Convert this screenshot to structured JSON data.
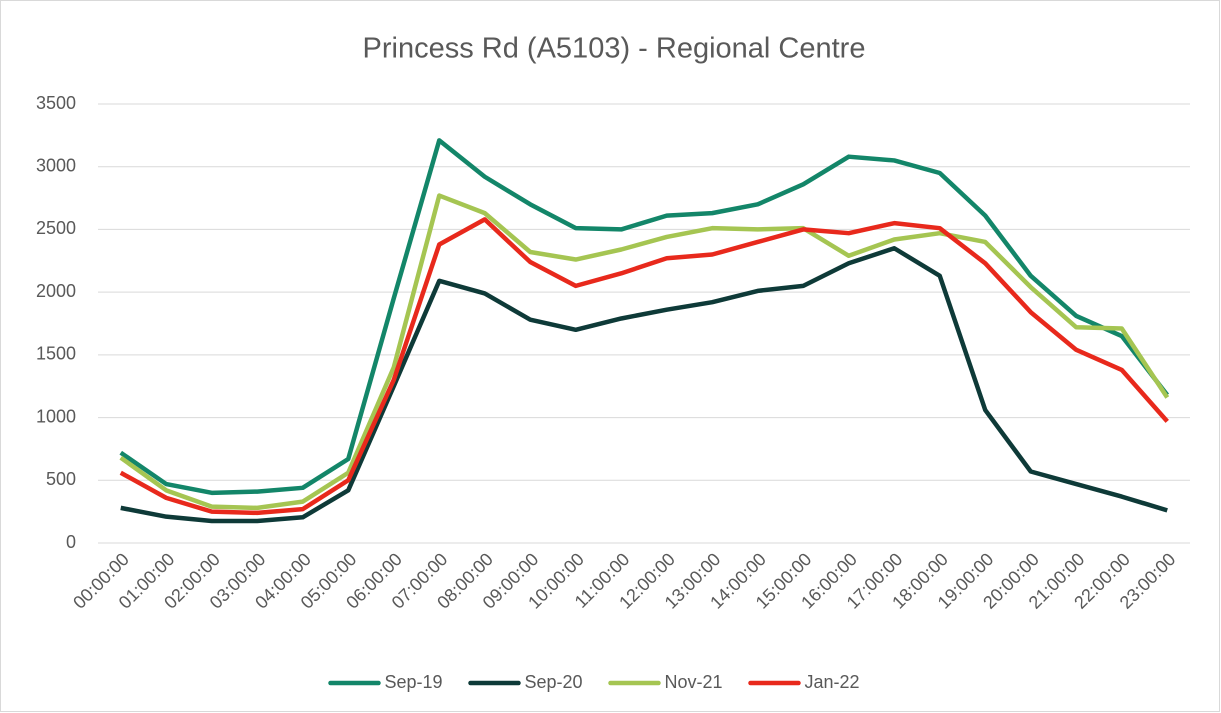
{
  "chart_data": {
    "type": "line",
    "title": "Princess Rd (A5103) - Regional Centre",
    "categories": [
      "00:00:00",
      "01:00:00",
      "02:00:00",
      "03:00:00",
      "04:00:00",
      "05:00:00",
      "06:00:00",
      "07:00:00",
      "08:00:00",
      "09:00:00",
      "10:00:00",
      "11:00:00",
      "12:00:00",
      "13:00:00",
      "14:00:00",
      "15:00:00",
      "16:00:00",
      "17:00:00",
      "18:00:00",
      "19:00:00",
      "20:00:00",
      "21:00:00",
      "22:00:00",
      "23:00:00"
    ],
    "series": [
      {
        "name": "Sep-19",
        "color": "#138669",
        "values": [
          720,
          470,
          400,
          410,
          440,
          670,
          1950,
          3210,
          2920,
          2700,
          2510,
          2500,
          2610,
          2630,
          2700,
          2860,
          3080,
          3050,
          2950,
          2610,
          2130,
          1810,
          1650,
          1180
        ]
      },
      {
        "name": "Sep-20",
        "color": "#0e3a38",
        "values": [
          280,
          210,
          175,
          175,
          205,
          420,
          1250,
          2090,
          1990,
          1780,
          1700,
          1790,
          1860,
          1920,
          2010,
          2050,
          2230,
          2350,
          2130,
          1060,
          570,
          470,
          370,
          260
        ]
      },
      {
        "name": "Nov-21",
        "color": "#a5c552",
        "values": [
          680,
          420,
          290,
          280,
          330,
          560,
          1400,
          2770,
          2630,
          2320,
          2260,
          2340,
          2440,
          2510,
          2500,
          2510,
          2290,
          2420,
          2470,
          2400,
          2040,
          1720,
          1710,
          1160
        ]
      },
      {
        "name": "Jan-22",
        "color": "#e8291c",
        "values": [
          560,
          360,
          250,
          240,
          270,
          500,
          1300,
          2380,
          2580,
          2240,
          2050,
          2150,
          2270,
          2300,
          2400,
          2500,
          2470,
          2550,
          2510,
          2230,
          1840,
          1540,
          1380,
          970
        ]
      }
    ],
    "ylim": [
      0,
      3500
    ],
    "yticks": [
      0,
      500,
      1000,
      1500,
      2000,
      2500,
      3000,
      3500
    ],
    "grid": true,
    "legend": "bottom"
  }
}
